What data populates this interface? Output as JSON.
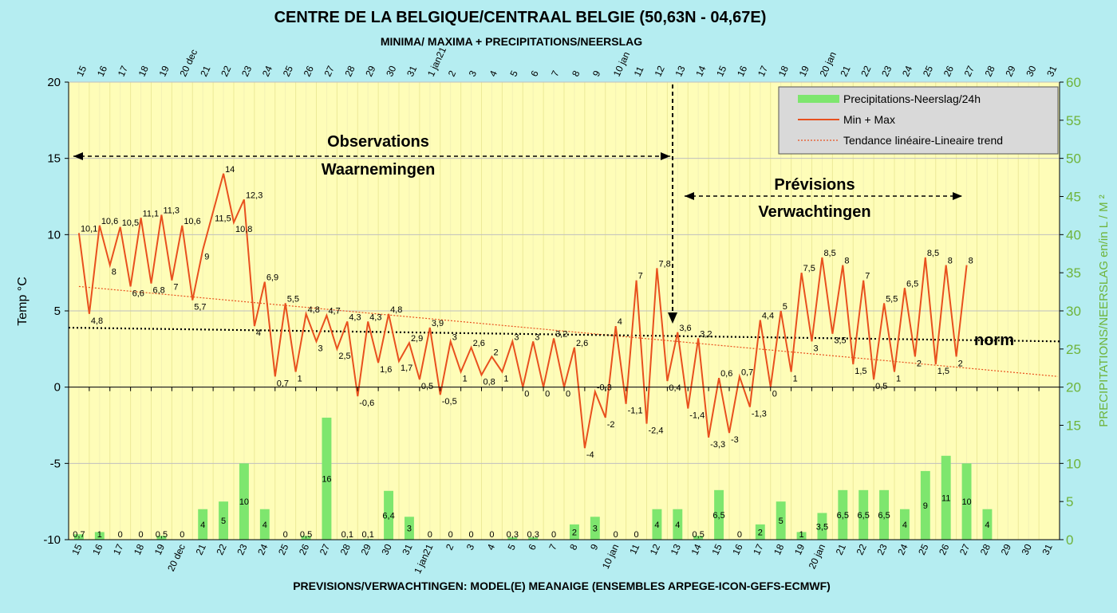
{
  "chart_data": {
    "type": "bar+line",
    "title": "CENTRE DE LA BELGIQUE/CENTRAAL BELGIE (50,63N - 04,67E)",
    "subtitle": "MINIMA/ MAXIMA + PRECIPITATIONS/NEERSLAG",
    "footer": "PREVISIONS/VERWACHTINGEN: MODEL(E) MEANAIGE (ENSEMBLES ARPEGE-ICON-GEFS-ECMWF)",
    "ylabel": "Temp   °C",
    "y2label": "PRECIPITATIONS/NEERSLAG en/in L / M ²",
    "ylim": [
      -10,
      20
    ],
    "y2lim": [
      0,
      60
    ],
    "yticks": [
      -10,
      -5,
      0,
      5,
      10,
      15,
      20
    ],
    "y2ticks": [
      0,
      5,
      10,
      15,
      20,
      25,
      30,
      35,
      40,
      45,
      50,
      55,
      60
    ],
    "days": [
      "15",
      "16",
      "17",
      "18",
      "19",
      "20 dec",
      "21",
      "22",
      "23",
      "24",
      "25",
      "26",
      "27",
      "28",
      "29",
      "30",
      "31",
      "1 jan21",
      "2",
      "3",
      "4",
      "5",
      "6",
      "7",
      "8",
      "9",
      "10 jan",
      "11",
      "12",
      "13",
      "14",
      "15",
      "16",
      "17",
      "18",
      "19",
      "20 jan",
      "21",
      "22",
      "23",
      "24",
      "25",
      "26",
      "27",
      "28",
      "29",
      "30",
      "31"
    ],
    "temp_series": {
      "name": "Min + Max",
      "color": "#e8501e",
      "values": [
        10.1,
        4.8,
        10.6,
        8,
        10.5,
        6.6,
        11.1,
        6.8,
        11.3,
        7,
        10.6,
        5.7,
        9,
        11.5,
        14,
        10.8,
        12.3,
        4,
        6.9,
        0.7,
        5.5,
        1,
        4.8,
        3,
        4.7,
        2.5,
        4.3,
        -0.6,
        4.3,
        1.6,
        4.8,
        1.7,
        2.9,
        0.5,
        3.9,
        -0.5,
        3,
        1,
        2.6,
        0.8,
        2,
        1,
        3,
        0,
        3,
        0,
        3.2,
        0,
        2.6,
        -4,
        -0.3,
        -2,
        4,
        -1.1,
        7,
        -2.4,
        7.8,
        0.4,
        3.6,
        -1.4,
        3.2,
        -3.3,
        0.6,
        -3,
        0.7,
        -1.3,
        4.4,
        0,
        5,
        1,
        7.5,
        3,
        8.5,
        3.5,
        8,
        1.5,
        7,
        0.5,
        5.5,
        1,
        6.5,
        2,
        8.5,
        1.5,
        8,
        2,
        8
      ],
      "labels": [
        "10,1",
        "4,8",
        "10,6",
        "8",
        "10,5",
        "6,6",
        "11,1",
        "6,8",
        "11,3",
        "7",
        "10,6",
        "5,7",
        "9",
        "11,5",
        "14",
        "10,8",
        "12,3",
        "4",
        "6,9",
        "0,7",
        "5,5",
        "1",
        "4,8",
        "3",
        "4,7",
        "2,5",
        "4,3",
        "-0,6",
        "4,3",
        "1,6",
        "4,8",
        "1,7",
        "2,9",
        "0,5",
        "3,9",
        "-0,5",
        "3",
        "1",
        "2,6",
        "0,8",
        "2",
        "1",
        "3",
        "0",
        "3",
        "0",
        "3,2",
        "0",
        "2,6",
        "-4",
        "-0,3",
        "-2",
        "4",
        "-1,1",
        "7",
        "-2,4",
        "7,8",
        "0,4",
        "3,6",
        "-1,4",
        "3,2",
        "-3,3",
        "0,6",
        "-3",
        "0,7",
        "-1,3",
        "4,4",
        "0",
        "5",
        "1",
        "7,5",
        "3",
        "8,5",
        "3,5",
        "8",
        "1,5",
        "7",
        "0,5",
        "5,5",
        "1",
        "6,5",
        "2",
        "8,5",
        "1,5",
        "8",
        "2",
        "8"
      ]
    },
    "precip_series": {
      "name": "Precipitations-Neerslag/24h",
      "color": "#7ee66e",
      "values": [
        0.7,
        1,
        0,
        0,
        0.5,
        0,
        4,
        5,
        10,
        4,
        0,
        0.5,
        16,
        0.1,
        0.1,
        6.4,
        3,
        0,
        0,
        0,
        0,
        0.3,
        0.3,
        0,
        2,
        3,
        0,
        0,
        4,
        4,
        0.5,
        6.5,
        0,
        2,
        5,
        1,
        3.5,
        6.5,
        6.5,
        6.5,
        4,
        9,
        11,
        10,
        4
      ],
      "labels": [
        "0,7",
        "1",
        "0",
        "0",
        "0,5",
        "0",
        "4",
        "5",
        "10",
        "4",
        "0",
        "0,5",
        "16",
        "0,1",
        "0,1",
        "6,4",
        "3",
        "0",
        "0",
        "0",
        "0",
        "0,3",
        "0,3",
        "0",
        "2",
        "3",
        "0",
        "0",
        "4",
        "4",
        "0,5",
        "6,5",
        "0",
        "2",
        "5",
        "1",
        "3,5",
        "6,5",
        "6,5",
        "6,5",
        "4",
        "9",
        "11",
        "10",
        "4"
      ]
    },
    "trend": {
      "name": "Tendance linéaire-Lineaire trend",
      "color": "#e8501e",
      "start": 6.6,
      "end": 0.7
    },
    "norm": {
      "label": "norm",
      "start": 3.9,
      "end": 3.0
    },
    "annotations": {
      "observations": [
        "Observations",
        "Waarnemingen"
      ],
      "previsions": [
        "Prévisions",
        "Verwachtingen"
      ]
    },
    "legend_position": "top-right",
    "grid": true
  }
}
